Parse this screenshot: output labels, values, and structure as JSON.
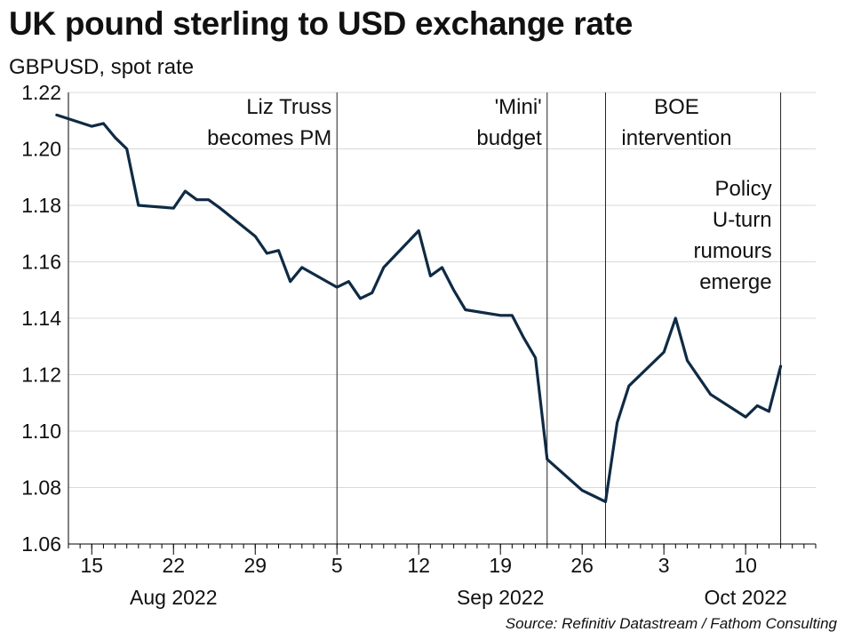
{
  "title": "UK pound sterling to USD exchange rate",
  "subtitle": "GBPUSD, spot rate",
  "source": "Source: Refinitiv Datastream / Fathom Consulting",
  "chart_data": {
    "type": "line",
    "title": "UK pound sterling to USD exchange rate",
    "subtitle": "GBPUSD, spot rate",
    "ylabel": "",
    "xlabel": "",
    "ylim": [
      1.06,
      1.22
    ],
    "xlim": [
      "2022-08-13",
      "2022-10-16"
    ],
    "grid": true,
    "legend": "none",
    "line_color": "#0f2a44",
    "y_ticks": [
      "1.06",
      "1.08",
      "1.10",
      "1.12",
      "1.14",
      "1.16",
      "1.18",
      "1.20",
      "1.22"
    ],
    "x_ticks": [
      {
        "date": "2022-08-15",
        "label": "15"
      },
      {
        "date": "2022-08-22",
        "label": "22"
      },
      {
        "date": "2022-08-29",
        "label": "29"
      },
      {
        "date": "2022-09-05",
        "label": "5"
      },
      {
        "date": "2022-09-12",
        "label": "12"
      },
      {
        "date": "2022-09-19",
        "label": "19"
      },
      {
        "date": "2022-09-26",
        "label": "26"
      },
      {
        "date": "2022-10-03",
        "label": "3"
      },
      {
        "date": "2022-10-10",
        "label": "10"
      }
    ],
    "month_labels": [
      {
        "date": "2022-08-22",
        "label": "Aug 2022"
      },
      {
        "date": "2022-09-19",
        "label": "Sep 2022"
      },
      {
        "date": "2022-10-10",
        "label": "Oct 2022"
      }
    ],
    "series": [
      {
        "points": [
          [
            "2022-08-12",
            1.212
          ],
          [
            "2022-08-15",
            1.208
          ],
          [
            "2022-08-16",
            1.209
          ],
          [
            "2022-08-17",
            1.204
          ],
          [
            "2022-08-18",
            1.2
          ],
          [
            "2022-08-19",
            1.18
          ],
          [
            "2022-08-22",
            1.179
          ],
          [
            "2022-08-23",
            1.185
          ],
          [
            "2022-08-24",
            1.182
          ],
          [
            "2022-08-25",
            1.182
          ],
          [
            "2022-08-26",
            1.179
          ],
          [
            "2022-08-29",
            1.169
          ],
          [
            "2022-08-30",
            1.163
          ],
          [
            "2022-08-31",
            1.164
          ],
          [
            "2022-09-01",
            1.153
          ],
          [
            "2022-09-02",
            1.158
          ],
          [
            "2022-09-05",
            1.151
          ],
          [
            "2022-09-06",
            1.153
          ],
          [
            "2022-09-07",
            1.147
          ],
          [
            "2022-09-08",
            1.149
          ],
          [
            "2022-09-09",
            1.158
          ],
          [
            "2022-09-12",
            1.171
          ],
          [
            "2022-09-13",
            1.155
          ],
          [
            "2022-09-14",
            1.158
          ],
          [
            "2022-09-15",
            1.15
          ],
          [
            "2022-09-16",
            1.143
          ],
          [
            "2022-09-19",
            1.141
          ],
          [
            "2022-09-20",
            1.141
          ],
          [
            "2022-09-21",
            1.133
          ],
          [
            "2022-09-22",
            1.126
          ],
          [
            "2022-09-23",
            1.09
          ],
          [
            "2022-09-26",
            1.079
          ],
          [
            "2022-09-27",
            1.077
          ],
          [
            "2022-09-28",
            1.075
          ],
          [
            "2022-09-29",
            1.103
          ],
          [
            "2022-09-30",
            1.116
          ],
          [
            "2022-10-03",
            1.128
          ],
          [
            "2022-10-04",
            1.14
          ],
          [
            "2022-10-05",
            1.125
          ],
          [
            "2022-10-06",
            1.119
          ],
          [
            "2022-10-07",
            1.113
          ],
          [
            "2022-10-10",
            1.105
          ],
          [
            "2022-10-11",
            1.109
          ],
          [
            "2022-10-12",
            1.107
          ],
          [
            "2022-10-13",
            1.123
          ]
        ]
      }
    ],
    "events": [
      {
        "date": "2022-09-05",
        "lines": [
          "Liz Truss",
          "becomes PM"
        ]
      },
      {
        "date": "2022-09-23",
        "lines": [
          "'Mini'",
          "budget"
        ]
      },
      {
        "date": "2022-09-28",
        "lines": [
          "BOE",
          "intervention"
        ]
      },
      {
        "date": "2022-10-13",
        "lines": [
          "Policy",
          "U-turn",
          "rumours",
          "emerge"
        ]
      }
    ]
  }
}
